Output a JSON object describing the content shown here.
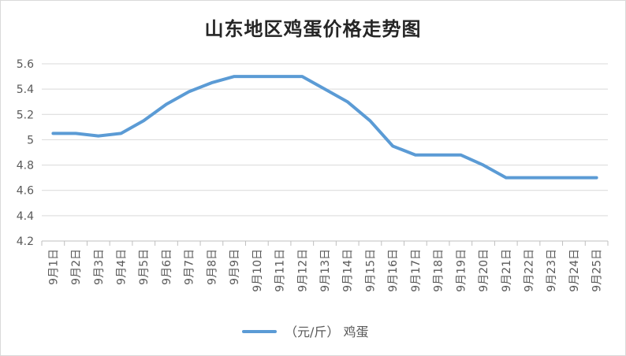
{
  "chart_data": {
    "type": "line",
    "title": "山东地区鸡蛋价格走势图",
    "xlabel": "",
    "ylabel": "",
    "categories": [
      "9月1日",
      "9月2日",
      "9月3日",
      "9月4日",
      "9月5日",
      "9月6日",
      "9月7日",
      "9月8日",
      "9月9日",
      "9月10日",
      "9月11日",
      "9月12日",
      "9月13日",
      "9月14日",
      "9月15日",
      "9月16日",
      "9月17日",
      "9月18日",
      "9月19日",
      "9月20日",
      "9月21日",
      "9月22日",
      "9月23日",
      "9月24日",
      "9月25日"
    ],
    "series": [
      {
        "name": "（元/斤） 鸡蛋",
        "values": [
          5.05,
          5.05,
          5.03,
          5.05,
          5.15,
          5.28,
          5.38,
          5.45,
          5.5,
          5.5,
          5.5,
          5.5,
          5.4,
          5.3,
          5.15,
          4.95,
          4.88,
          4.88,
          4.88,
          4.8,
          4.7,
          4.7,
          4.7,
          4.7,
          4.7
        ]
      }
    ],
    "ylim": [
      4.2,
      5.6
    ],
    "yticks": [
      "4.2",
      "4.4",
      "4.6",
      "4.8",
      "5",
      "5.2",
      "5.4",
      "5.6"
    ],
    "grid": true,
    "legend_position": "bottom",
    "colors": {
      "line": "#5b9bd5",
      "grid": "#d9d9d9",
      "axis": "#bfbfbf"
    }
  }
}
